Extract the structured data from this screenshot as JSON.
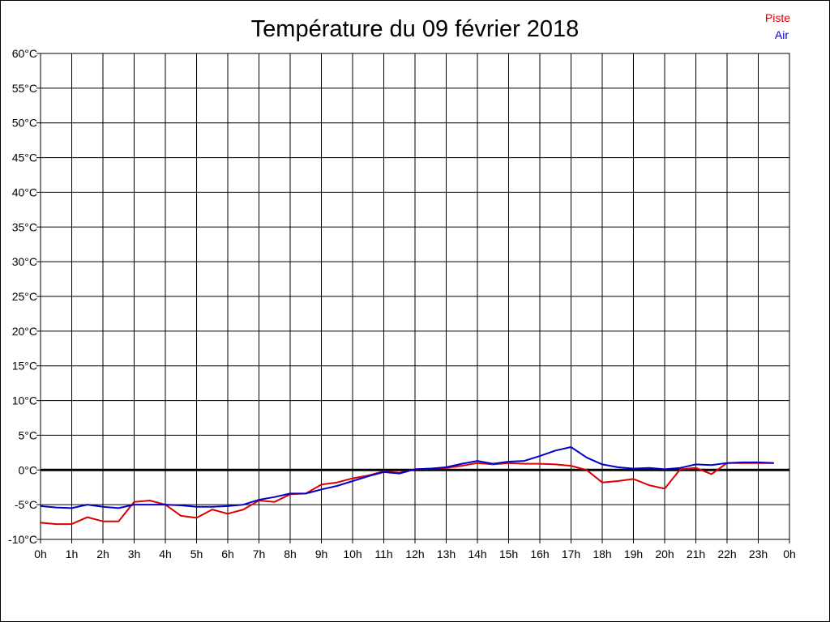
{
  "chart_data": {
    "type": "line",
    "title": "Température du 09 février 2018",
    "xlabel": "",
    "ylabel": "",
    "x_ticks": [
      "0h",
      "1h",
      "2h",
      "3h",
      "4h",
      "5h",
      "6h",
      "7h",
      "8h",
      "9h",
      "10h",
      "11h",
      "12h",
      "13h",
      "14h",
      "15h",
      "16h",
      "17h",
      "18h",
      "19h",
      "20h",
      "21h",
      "22h",
      "23h",
      "0h"
    ],
    "y_ticks": [
      "-10°C",
      "-5°C",
      "0°C",
      "5°C",
      "10°C",
      "15°C",
      "20°C",
      "25°C",
      "30°C",
      "35°C",
      "40°C",
      "45°C",
      "50°C",
      "55°C",
      "60°C"
    ],
    "xlim": [
      0,
      24
    ],
    "ylim": [
      -10,
      60
    ],
    "grid": true,
    "legend_position": "top-right",
    "x": [
      0,
      0.5,
      1,
      1.5,
      2,
      2.5,
      3,
      3.5,
      4,
      4.5,
      5,
      5.5,
      6,
      6.5,
      7,
      7.5,
      8,
      8.5,
      9,
      9.5,
      10,
      10.5,
      11,
      11.5,
      12,
      12.5,
      13,
      13.5,
      14,
      14.5,
      15,
      15.5,
      16,
      16.5,
      17,
      17.5,
      18,
      18.5,
      19,
      19.5,
      20,
      20.5,
      21,
      21.5,
      22,
      22.5,
      23,
      23.5
    ],
    "series": [
      {
        "name": "Piste",
        "color": "#dd0000",
        "values": [
          -7.6,
          -7.8,
          -7.8,
          -6.8,
          -7.4,
          -7.4,
          -4.6,
          -4.4,
          -5.0,
          -6.6,
          -6.9,
          -5.7,
          -6.3,
          -5.7,
          -4.4,
          -4.6,
          -3.5,
          -3.4,
          -2.1,
          -1.8,
          -1.2,
          -0.8,
          -0.2,
          -0.4,
          0.1,
          0.2,
          0.3,
          0.6,
          1.0,
          0.8,
          1.0,
          0.9,
          0.9,
          0.8,
          0.6,
          0.0,
          -1.8,
          -1.6,
          -1.3,
          -2.2,
          -2.7,
          0.1,
          0.3,
          -0.6,
          1.0,
          1.0,
          1.0,
          1.0
        ]
      },
      {
        "name": "Air",
        "color": "#0000cc",
        "values": [
          -5.2,
          -5.4,
          -5.5,
          -5.0,
          -5.3,
          -5.5,
          -5.0,
          -5.0,
          -5.0,
          -5.1,
          -5.3,
          -5.3,
          -5.2,
          -5.0,
          -4.3,
          -3.9,
          -3.4,
          -3.4,
          -2.8,
          -2.3,
          -1.6,
          -0.9,
          -0.3,
          -0.5,
          0.1,
          0.2,
          0.4,
          0.9,
          1.3,
          0.9,
          1.2,
          1.3,
          2.0,
          2.8,
          3.3,
          1.8,
          0.8,
          0.4,
          0.2,
          0.3,
          0.1,
          0.3,
          0.8,
          0.7,
          1.0,
          1.1,
          1.1,
          1.0
        ]
      }
    ]
  }
}
